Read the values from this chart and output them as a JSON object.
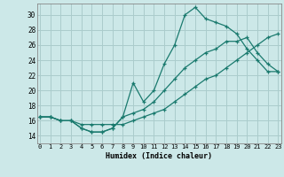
{
  "xlabel": "Humidex (Indice chaleur)",
  "background_color": "#cce8e8",
  "grid_color": "#aacccc",
  "line_color": "#1a7a6e",
  "x_ticks": [
    0,
    1,
    2,
    3,
    4,
    5,
    6,
    7,
    8,
    9,
    10,
    11,
    12,
    13,
    14,
    15,
    16,
    17,
    18,
    19,
    20,
    21,
    22,
    23
  ],
  "y_ticks": [
    14,
    16,
    18,
    20,
    22,
    24,
    26,
    28,
    30
  ],
  "ylim": [
    13.0,
    31.5
  ],
  "xlim": [
    -0.3,
    23.3
  ],
  "line1_y": [
    16.5,
    16.5,
    16.0,
    16.0,
    15.0,
    14.5,
    14.5,
    15.0,
    16.5,
    21.0,
    18.5,
    20.0,
    23.5,
    26.0,
    30.0,
    31.0,
    29.5,
    29.0,
    28.5,
    27.5,
    25.5,
    24.0,
    22.5,
    22.5
  ],
  "line2_y": [
    16.5,
    16.5,
    16.0,
    16.0,
    15.5,
    15.5,
    15.5,
    15.5,
    15.5,
    16.0,
    16.5,
    17.0,
    17.5,
    18.5,
    19.5,
    20.5,
    21.5,
    22.0,
    23.0,
    24.0,
    25.0,
    26.0,
    27.0,
    27.5
  ],
  "line3_y": [
    16.5,
    16.5,
    16.0,
    16.0,
    15.0,
    14.5,
    14.5,
    15.0,
    16.5,
    17.0,
    17.5,
    18.5,
    20.0,
    21.5,
    23.0,
    24.0,
    25.0,
    25.5,
    26.5,
    26.5,
    27.0,
    25.0,
    23.5,
    22.5
  ]
}
